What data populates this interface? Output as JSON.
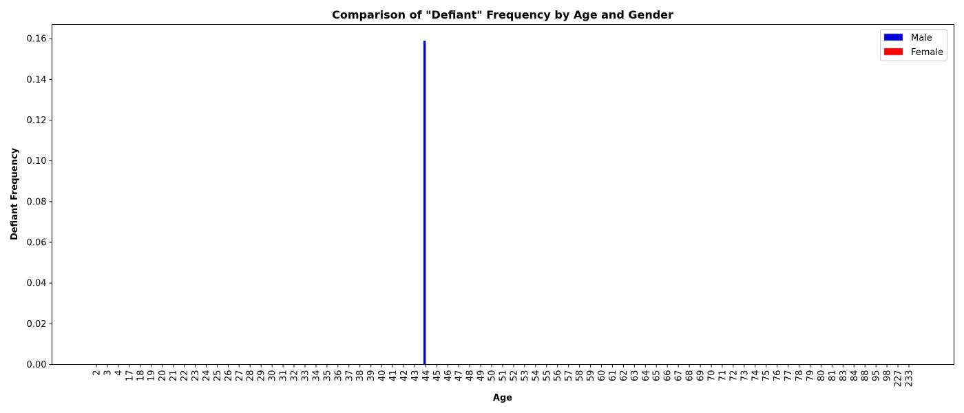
{
  "chart_data": {
    "type": "bar",
    "title": "Comparison of \"Defiant\" Frequency by Age and Gender",
    "xlabel": "Age",
    "ylabel": "Defiant Frequency",
    "ylim": [
      0,
      0.167
    ],
    "yticks": [
      "0.00",
      "0.02",
      "0.04",
      "0.06",
      "0.08",
      "0.10",
      "0.12",
      "0.14",
      "0.16"
    ],
    "categories": [
      "2",
      "3",
      "4",
      "17",
      "18",
      "19",
      "20",
      "21",
      "22",
      "23",
      "24",
      "25",
      "26",
      "27",
      "28",
      "29",
      "30",
      "31",
      "32",
      "33",
      "34",
      "35",
      "36",
      "37",
      "38",
      "39",
      "40",
      "41",
      "42",
      "43",
      "44",
      "45",
      "46",
      "47",
      "48",
      "49",
      "50",
      "51",
      "52",
      "53",
      "54",
      "55",
      "56",
      "57",
      "58",
      "59",
      "60",
      "61",
      "62",
      "63",
      "64",
      "65",
      "66",
      "67",
      "68",
      "69",
      "70",
      "71",
      "72",
      "73",
      "74",
      "75",
      "76",
      "77",
      "78",
      "79",
      "80",
      "81",
      "83",
      "84",
      "88",
      "95",
      "98",
      "227",
      "233"
    ],
    "series": [
      {
        "name": "Male",
        "color": "#0000dd",
        "values": [
          0,
          0,
          0,
          0,
          0,
          0,
          0,
          0,
          0,
          0,
          0,
          0,
          0,
          0,
          0,
          0,
          0,
          0,
          0,
          0,
          0,
          0,
          0,
          0,
          0,
          0,
          0,
          0,
          0,
          0,
          0.159,
          0,
          0,
          0,
          0,
          0,
          0,
          0,
          0,
          0,
          0,
          0,
          0,
          0,
          0,
          0,
          0,
          0,
          0,
          0,
          0,
          0,
          0,
          0,
          0,
          0,
          0,
          0,
          0,
          0,
          0,
          0,
          0,
          0,
          0,
          0,
          0,
          0,
          0,
          0,
          0,
          0,
          0,
          0,
          0
        ]
      },
      {
        "name": "Female",
        "color": "#ff0000",
        "values": [
          0,
          0,
          0,
          0,
          0,
          0,
          0,
          0,
          0,
          0,
          0,
          0,
          0,
          0,
          0,
          0,
          0,
          0,
          0,
          0,
          0,
          0,
          0,
          0,
          0,
          0,
          0,
          0,
          0,
          0,
          0,
          0,
          0,
          0,
          0,
          0,
          0,
          0,
          0,
          0,
          0,
          0,
          0,
          0,
          0,
          0,
          0,
          0,
          0,
          0,
          0,
          0,
          0,
          0,
          0,
          0,
          0,
          0,
          0,
          0,
          0,
          0,
          0,
          0,
          0,
          0,
          0,
          0,
          0,
          0,
          0,
          0,
          0,
          0,
          0
        ]
      }
    ],
    "legend_position": "top-right",
    "grid": false
  }
}
